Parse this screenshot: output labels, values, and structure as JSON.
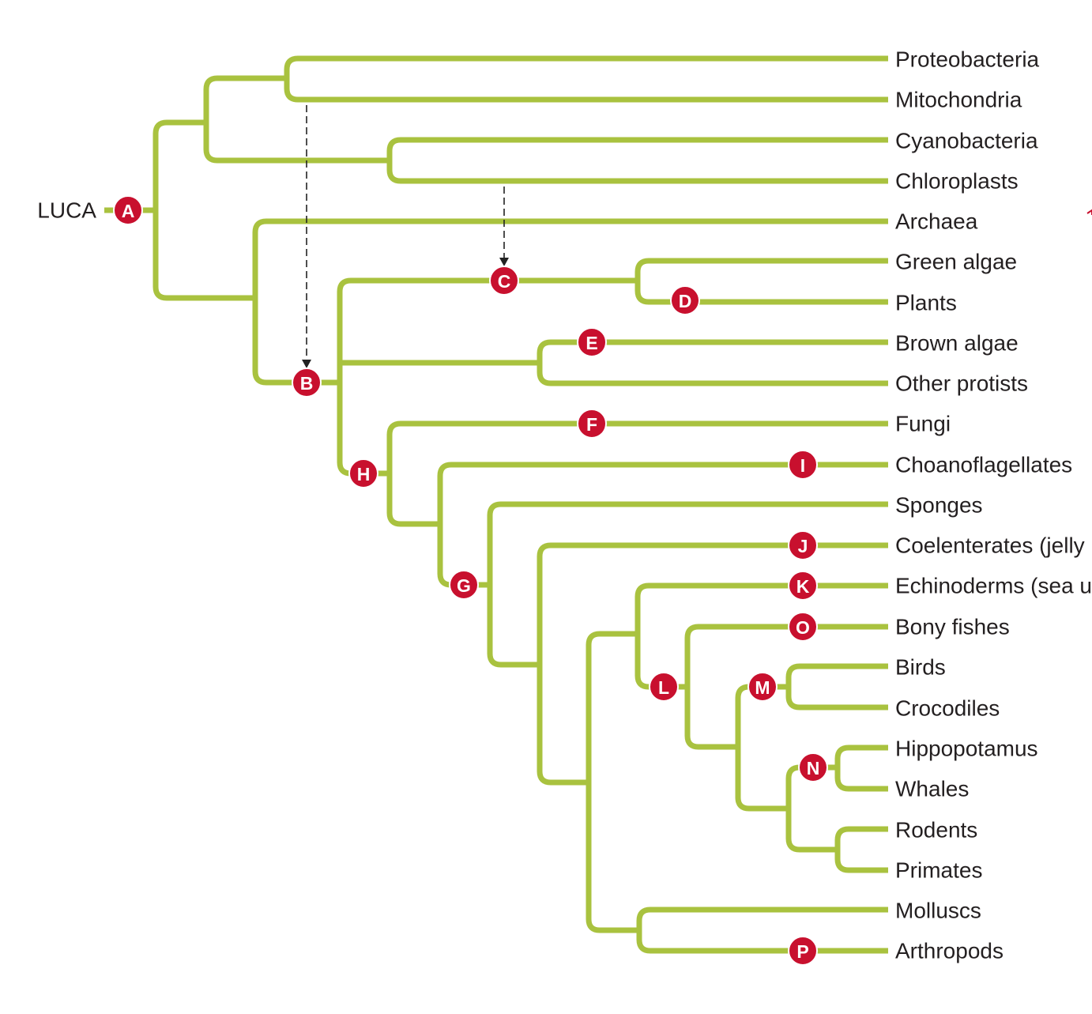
{
  "root_label": "LUCA",
  "colors": {
    "branch": "#a9c23f",
    "node": "#c8102e",
    "text": "#231f20",
    "arrow": "#222222"
  },
  "taxa": [
    "Proteobacteria",
    "Mitochondria",
    "Cyanobacteria",
    "Chloroplasts",
    "Archaea",
    "Green algae",
    "Plants",
    "Brown algae",
    "Other protists",
    "Fungi",
    "Choanoflagellates",
    "Sponges",
    "Coelenterates (jelly",
    "Echinoderms (sea u",
    "Bony fishes",
    "Birds",
    "Crocodiles",
    "Hippopotamus",
    "Whales",
    "Rodents",
    "Primates",
    "Molluscs",
    "Arthropods"
  ],
  "nodes": [
    "A",
    "B",
    "C",
    "D",
    "E",
    "F",
    "G",
    "H",
    "I",
    "J",
    "K",
    "L",
    "M",
    "N",
    "O",
    "P"
  ],
  "transfers": [
    {
      "from": "Mitochondria",
      "to": "B"
    },
    {
      "from": "Chloroplasts",
      "to": "C"
    }
  ]
}
